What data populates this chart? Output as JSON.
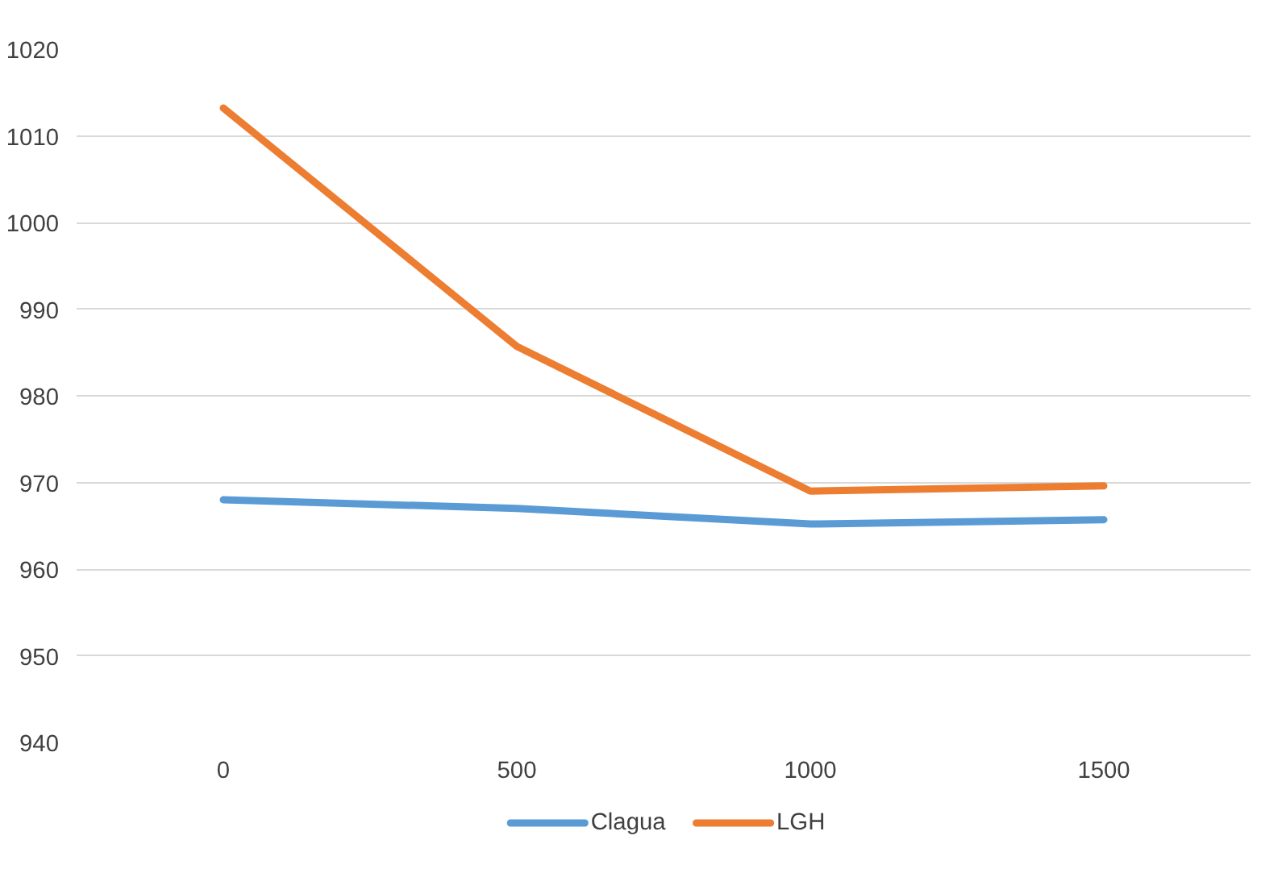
{
  "chart_data": {
    "type": "line",
    "categories": [
      "0",
      "500",
      "1000",
      "1500"
    ],
    "series": [
      {
        "name": "Clagua",
        "color": "#5b9bd5",
        "values": [
          968,
          967,
          965.2,
          965.7
        ]
      },
      {
        "name": "LGH",
        "color": "#ed7d31",
        "values": [
          1013.2,
          985.7,
          969,
          969.6
        ]
      }
    ],
    "ylim": [
      940,
      1020
    ],
    "yticks": [
      940,
      950,
      960,
      970,
      980,
      990,
      1000,
      1010,
      1020
    ],
    "grid": "y",
    "legend": "bottom",
    "marker": "none",
    "line_style": "solid"
  }
}
